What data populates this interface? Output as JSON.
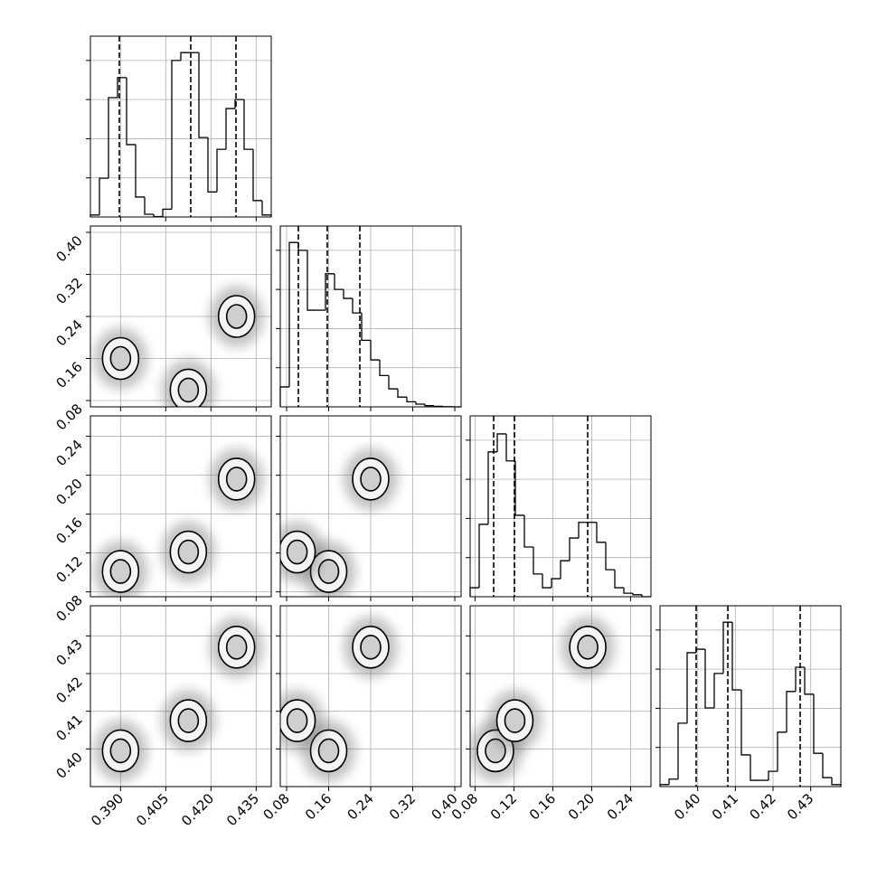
{
  "chart_data": {
    "type": "corner",
    "variables": [
      {
        "lim": [
          0.38,
          0.44
        ],
        "ticks": [
          {
            "value": 0.39,
            "label": "0.390"
          },
          {
            "value": 0.405,
            "label": "0.405"
          },
          {
            "value": 0.42,
            "label": "0.420"
          },
          {
            "value": 0.435,
            "label": "0.435"
          }
        ],
        "bins": [
          0.38,
          0.383,
          0.386,
          0.389,
          0.392,
          0.395,
          0.398,
          0.401,
          0.404,
          0.407,
          0.41,
          0.413,
          0.416,
          0.419,
          0.422,
          0.425,
          0.428,
          0.431,
          0.434,
          0.437,
          0.44
        ],
        "counts": [
          50,
          990,
          3050,
          3560,
          1850,
          510,
          70,
          10,
          200,
          4000,
          4200,
          4200,
          2030,
          640,
          1730,
          2770,
          3000,
          1730,
          420,
          50
        ],
        "quantiles": [
          0.3896,
          0.4133,
          0.4283
        ]
      },
      {
        "lim": [
          0.068,
          0.412
        ],
        "ticks": [
          0.08,
          0.16,
          0.24,
          0.32,
          {
            "value": 0.4,
            "label": "0.40"
          }
        ],
        "bins": [
          0.068,
          0.0852,
          0.1024,
          0.1196,
          0.1368,
          0.154,
          0.1712,
          0.1884,
          0.2056,
          0.2228,
          0.24,
          0.2572,
          0.2744,
          0.2916,
          0.3088,
          0.326,
          0.3432,
          0.3604,
          0.3776,
          0.3948,
          0.412
        ],
        "counts": [
          510,
          4200,
          4000,
          2470,
          2470,
          3400,
          3000,
          2770,
          2400,
          1700,
          1200,
          800,
          460,
          250,
          130,
          70,
          30,
          15,
          5,
          0
        ],
        "quantiles": [
          0.1024,
          0.1574,
          0.2194
        ]
      },
      {
        "lim": [
          0.075,
          0.261
        ],
        "ticks": [
          0.08,
          0.12,
          0.16,
          {
            "value": 0.2,
            "label": "0.20"
          },
          0.24
        ],
        "bins": [
          0.075,
          0.0843,
          0.0936,
          0.1029,
          0.1122,
          0.1215,
          0.1308,
          0.1401,
          0.1494,
          0.1587,
          0.168,
          0.1773,
          0.1866,
          0.1959,
          0.2052,
          0.2145,
          0.2238,
          0.2331,
          0.2424,
          0.2517,
          0.261
        ],
        "counts": [
          230,
          1850,
          3700,
          4160,
          3470,
          2080,
          1270,
          580,
          230,
          460,
          920,
          1500,
          1900,
          1900,
          1390,
          690,
          230,
          90,
          50,
          0
        ],
        "quantiles": [
          0.0992,
          0.1206,
          0.1959
        ]
      },
      {
        "lim": [
          0.39,
          0.438
        ],
        "ticks": [
          {
            "value": 0.4,
            "label": "0.40"
          },
          0.41,
          0.42,
          0.43
        ],
        "bins": [
          0.39,
          0.3924,
          0.3948,
          0.3972,
          0.3996,
          0.402,
          0.4044,
          0.4068,
          0.4092,
          0.4116,
          0.414,
          0.4164,
          0.4188,
          0.4212,
          0.4236,
          0.426,
          0.4284,
          0.4308,
          0.4332,
          0.4356,
          0.438
        ],
        "counts": [
          50,
          190,
          1620,
          3420,
          3510,
          2010,
          2890,
          4200,
          2470,
          810,
          160,
          160,
          390,
          1390,
          2430,
          3050,
          2360,
          850,
          230,
          50
        ],
        "quantiles": [
          0.3996,
          0.408,
          0.4272
        ]
      }
    ],
    "hist_ylim": [
      0,
      4620
    ],
    "hist_yticks": [
      1000,
      2000,
      3000,
      4000
    ],
    "modes": [
      [
        0.39,
        0.16,
        0.101,
        0.3995
      ],
      [
        0.4125,
        0.1,
        0.121,
        0.4075
      ],
      [
        0.4285,
        0.24,
        0.196,
        0.427
      ]
    ],
    "grid": true,
    "color": "#000000"
  }
}
